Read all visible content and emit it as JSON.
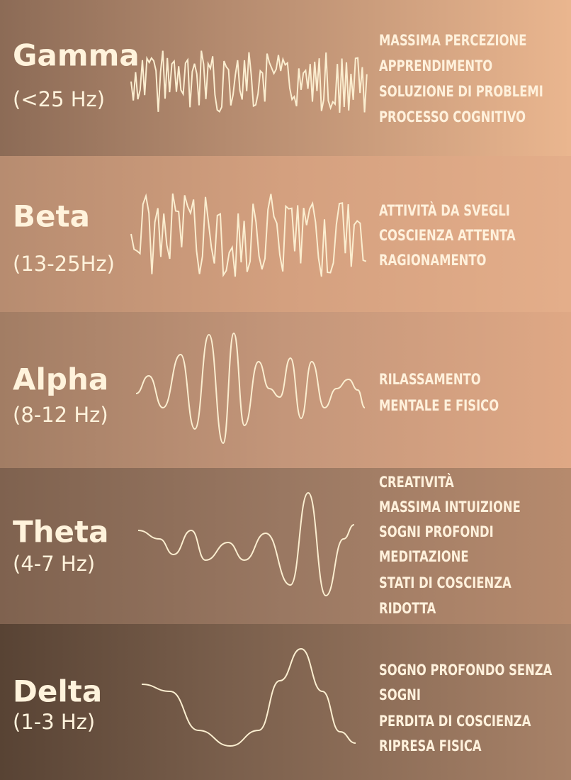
{
  "bands": [
    {
      "name": "Gamma",
      "range": "(<25 Hz)",
      "descriptions": [
        "MASSIMA PERCEZIONE",
        "APPRENDIMENTO",
        "SOLUZIONE DI PROBLEMI",
        "PROCESSO COGNITIVO"
      ]
    },
    {
      "name": "Beta",
      "range": "(13-25Hz)",
      "descriptions": [
        "ATTIVITÀ DA SVEGLI",
        "COSCIENZA ATTENTA",
        "RAGIONAMENTO"
      ]
    },
    {
      "name": "Alpha",
      "range": "(8-12 Hz)",
      "descriptions": [
        "RILASSAMENTO",
        "MENTALE E FISICO"
      ]
    },
    {
      "name": "Theta",
      "range": "(4-7 Hz)",
      "descriptions": [
        "CREATIVITÀ",
        "MASSIMA INTUIZIONE",
        "SOGNI PROFONDI",
        "MEDITAZIONE",
        "STATI DI COSCIENZA",
        "RIDOTTA"
      ]
    },
    {
      "name": "Delta",
      "range": "(1-3 Hz)",
      "descriptions": [
        "SOGNO PROFONDO SENZA",
        "SOGNI",
        "PERDITA DI COSCIENZA",
        "RIPRESA FISICA"
      ]
    }
  ]
}
